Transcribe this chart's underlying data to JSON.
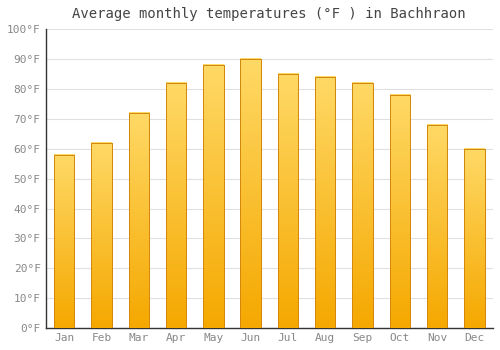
{
  "title": "Average monthly temperatures (°F ) in Bachhraon",
  "months": [
    "Jan",
    "Feb",
    "Mar",
    "Apr",
    "May",
    "Jun",
    "Jul",
    "Aug",
    "Sep",
    "Oct",
    "Nov",
    "Dec"
  ],
  "values": [
    58,
    62,
    72,
    82,
    88,
    90,
    85,
    84,
    82,
    78,
    68,
    60
  ],
  "bar_color_top": "#FFD966",
  "bar_color_bottom": "#F5A800",
  "bar_edge_color": "#D4870A",
  "background_color": "#FFFFFF",
  "grid_color": "#E0E0E0",
  "spine_color": "#333333",
  "text_color": "#888888",
  "title_color": "#444444",
  "ylim": [
    0,
    100
  ],
  "yticks": [
    0,
    10,
    20,
    30,
    40,
    50,
    60,
    70,
    80,
    90,
    100
  ],
  "title_fontsize": 10,
  "tick_fontsize": 8,
  "bar_width": 0.55
}
